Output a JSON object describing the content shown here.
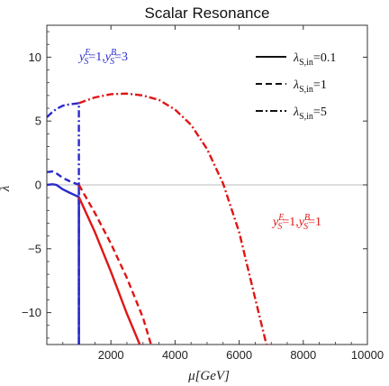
{
  "chart_data": {
    "type": "line",
    "title": "Scalar Resonance",
    "xlabel": "μ[GeV]",
    "ylabel": "λ",
    "xlim": [
      0,
      10000
    ],
    "ylim": [
      -12.5,
      12.5
    ],
    "x_ticks": [
      2000,
      4000,
      6000,
      8000,
      10000
    ],
    "y_ticks": [
      -10,
      -5,
      0,
      5,
      10
    ],
    "grid": false,
    "zero_line": true,
    "legend_position": "top-right",
    "legend": [
      {
        "label": "λ_S,in=0.1",
        "main": "λ",
        "sub": "S,in",
        "tail": "=0.1",
        "dash": "solid"
      },
      {
        "label": "λ_S,in=1",
        "main": "λ",
        "sub": "S,in",
        "tail": "=1",
        "dash": "dashed"
      },
      {
        "label": "λ_S,in=5",
        "main": "λ",
        "sub": "S,in",
        "tail": "=5",
        "dash": "dashdot"
      }
    ],
    "annotations": [
      {
        "text": "y_S^E=1, y_S^B=3",
        "color": "#2a2acc",
        "position": "top-left",
        "parts": [
          {
            "t": "y",
            "sup": "E",
            "sub": "S",
            "after": "=1,"
          },
          {
            "t": "y",
            "sup": "B",
            "sub": "S",
            "after": "=3"
          }
        ]
      },
      {
        "text": "y_S^E=1, y_S^B=1",
        "color": "#e01515",
        "position": "right",
        "parts": [
          {
            "t": "y",
            "sup": "E",
            "sub": "S",
            "after": "=1,"
          },
          {
            "t": "y",
            "sup": "B",
            "sub": "S",
            "after": "=1"
          }
        ]
      }
    ],
    "series": [
      {
        "group": "blue",
        "color": "#2a2acc",
        "dash": "solid",
        "x": [
          0,
          180,
          300,
          500,
          700,
          1000,
          1000
        ],
        "y": [
          0.0,
          0.05,
          0.0,
          -0.35,
          -0.6,
          -0.95,
          -12.5
        ]
      },
      {
        "group": "blue",
        "color": "#2a2acc",
        "dash": "dashed",
        "x": [
          0,
          180,
          300,
          500,
          700,
          1000,
          1000
        ],
        "y": [
          1.0,
          1.05,
          0.9,
          0.55,
          0.3,
          0.0,
          -12.5
        ]
      },
      {
        "group": "blue",
        "color": "#2a2acc",
        "dash": "dashdot",
        "x": [
          0,
          150,
          300,
          500,
          700,
          1000,
          1000
        ],
        "y": [
          5.3,
          5.65,
          5.95,
          6.2,
          6.3,
          6.4,
          -12.5
        ]
      },
      {
        "group": "red",
        "color": "#e01515",
        "dash": "solid",
        "x": [
          1000,
          1500,
          2000,
          2500,
          2900
        ],
        "y": [
          -0.95,
          -3.7,
          -6.8,
          -10.1,
          -12.5
        ]
      },
      {
        "group": "red",
        "color": "#e01515",
        "dash": "dashed",
        "x": [
          1000,
          1500,
          2000,
          2500,
          3000,
          3250
        ],
        "y": [
          0.0,
          -2.2,
          -4.6,
          -7.3,
          -10.4,
          -12.5
        ]
      },
      {
        "group": "red",
        "color": "#e01515",
        "dash": "dashdot",
        "x": [
          1000,
          1500,
          2000,
          2500,
          3000,
          3500,
          4000,
          4500,
          5000,
          5500,
          6000,
          6500,
          6850
        ],
        "y": [
          6.4,
          6.85,
          7.1,
          7.15,
          7.0,
          6.65,
          5.9,
          4.7,
          2.8,
          0.1,
          -3.7,
          -8.9,
          -12.5
        ]
      }
    ]
  }
}
